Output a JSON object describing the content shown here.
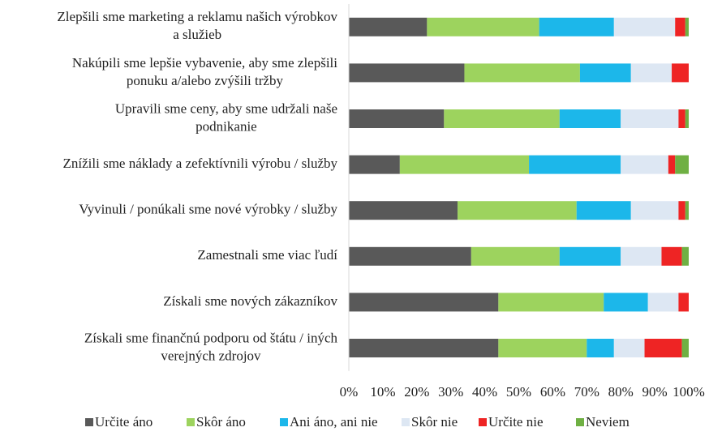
{
  "chart_data": {
    "type": "stacked-bar-horizontal",
    "categories": [
      [
        "Zlepšili sme marketing a reklamu našich výrobkov",
        "a služieb"
      ],
      [
        "Nakúpili sme lepšie vybavenie, aby sme zlepšili",
        "ponuku a/alebo zvýšili tržby"
      ],
      [
        "Upravili sme ceny, aby sme udržali naše",
        "podnikanie"
      ],
      [
        "Znížili sme náklady a zefektívnili výrobu / služby"
      ],
      [
        "Vyvinuli / ponúkali sme nové výrobky / služby"
      ],
      [
        "Zamestnali sme viac ľudí"
      ],
      [
        "Získali sme nových zákazníkov"
      ],
      [
        "Získali sme finančnú podporu od štátu / iných",
        "verejných zdrojov"
      ]
    ],
    "series": [
      {
        "name": "Určite áno",
        "color": "#595959",
        "values": [
          23,
          34,
          28,
          15,
          32,
          36,
          44,
          44
        ]
      },
      {
        "name": "Skôr áno",
        "color": "#9dd35e",
        "values": [
          33,
          34,
          34,
          38,
          35,
          26,
          31,
          26
        ]
      },
      {
        "name": "Ani áno, ani nie",
        "color": "#1cb7ea",
        "values": [
          22,
          15,
          18,
          27,
          16,
          18,
          13,
          8
        ]
      },
      {
        "name": "Skôr nie",
        "color": "#dde7f3",
        "values": [
          18,
          12,
          17,
          14,
          14,
          12,
          9,
          9
        ]
      },
      {
        "name": "Určite nie",
        "color": "#ee2424",
        "values": [
          3,
          5,
          2,
          2,
          2,
          6,
          3,
          11
        ]
      },
      {
        "name": "Neviem",
        "color": "#6fb043",
        "values": [
          1,
          0,
          1,
          4,
          1,
          2,
          0,
          2
        ]
      }
    ],
    "xlim": [
      0,
      100
    ],
    "xticks": [
      {
        "value": 0,
        "label": "0%"
      },
      {
        "value": 10,
        "label": "10%"
      },
      {
        "value": 20,
        "label": "20%"
      },
      {
        "value": 30,
        "label": "30%"
      },
      {
        "value": 40,
        "label": "40%"
      },
      {
        "value": 50,
        "label": "50%"
      },
      {
        "value": 60,
        "label": "60%"
      },
      {
        "value": 70,
        "label": "70%"
      },
      {
        "value": 80,
        "label": "80%"
      },
      {
        "value": 90,
        "label": "90%"
      },
      {
        "value": 100,
        "label": "100%"
      }
    ],
    "legend": "bottom"
  }
}
